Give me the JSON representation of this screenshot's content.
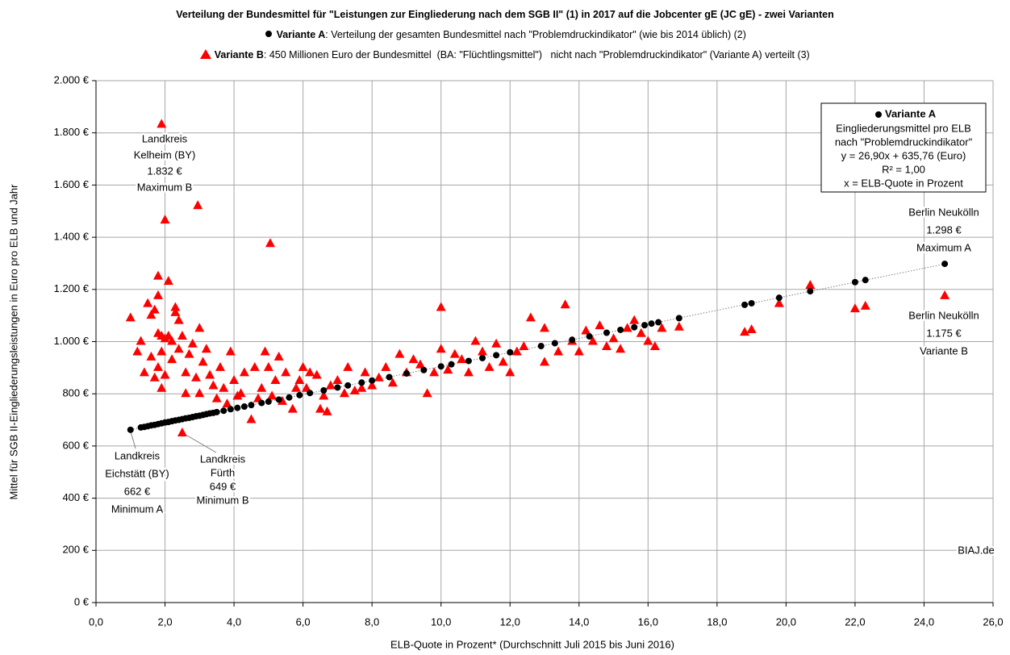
{
  "chart_data": {
    "type": "scatter",
    "title": "Verteilung der Bundesmittel für \"Leistungen zur Eingliederung nach dem SGB II\" (1) in 2017 auf die Jobcenter gE (JC gE) - zwei Varianten",
    "xlabel": "ELB-Quote in Prozent* (Durchschnitt Juli 2015 bis Juni 2016)",
    "ylabel": "Mittel für SGB II-Eingliederungsleistungen in Euro pro ELB und Jahr",
    "xlim": [
      0,
      26
    ],
    "ylim": [
      0,
      2000
    ],
    "xticks": [
      {
        "value": 0,
        "label": "0,0"
      },
      {
        "value": 2,
        "label": "2,0"
      },
      {
        "value": 4,
        "label": "4,0"
      },
      {
        "value": 6,
        "label": "6,0"
      },
      {
        "value": 8,
        "label": "8,0"
      },
      {
        "value": 10,
        "label": "10,0"
      },
      {
        "value": 12,
        "label": "12,0"
      },
      {
        "value": 14,
        "label": "14,0"
      },
      {
        "value": 16,
        "label": "16,0"
      },
      {
        "value": 18,
        "label": "18,0"
      },
      {
        "value": 20,
        "label": "20,0"
      },
      {
        "value": 22,
        "label": "22,0"
      },
      {
        "value": 24,
        "label": "24,0"
      },
      {
        "value": 26,
        "label": "26,0"
      }
    ],
    "yticks": [
      {
        "value": 0,
        "label": "0 €"
      },
      {
        "value": 200,
        "label": "200 €"
      },
      {
        "value": 400,
        "label": "400 €"
      },
      {
        "value": 600,
        "label": "600 €"
      },
      {
        "value": 800,
        "label": "800 €"
      },
      {
        "value": 1000,
        "label": "1.000 €"
      },
      {
        "value": 1200,
        "label": "1.200 €"
      },
      {
        "value": 1400,
        "label": "1.400 €"
      },
      {
        "value": 1600,
        "label": "1.600 €"
      },
      {
        "value": 1800,
        "label": "1.800 €"
      },
      {
        "value": 2000,
        "label": "2.000 €"
      }
    ],
    "grid": true,
    "series": [
      {
        "name": "Variante A",
        "description": ": Verteilung der gesamten Bundesmittel nach \"Problemdruckindikator\" (wie bis 2014 üblich) (2)",
        "color": "#000000",
        "marker": "circle",
        "x": [
          1.0,
          1.3,
          1.4,
          1.5,
          1.6,
          1.7,
          1.8,
          1.9,
          2.0,
          2.1,
          2.2,
          2.3,
          2.4,
          2.5,
          2.6,
          2.7,
          2.8,
          2.9,
          3.0,
          3.1,
          3.2,
          3.3,
          3.4,
          3.5,
          3.7,
          3.9,
          4.1,
          4.3,
          4.5,
          4.8,
          5.0,
          5.3,
          5.6,
          5.9,
          6.2,
          6.6,
          7.0,
          7.3,
          7.7,
          8.0,
          8.5,
          9.0,
          9.5,
          10.0,
          10.3,
          10.8,
          11.2,
          11.6,
          12.0,
          12.9,
          13.3,
          13.8,
          14.3,
          14.8,
          15.2,
          15.6,
          15.9,
          16.1,
          16.3,
          16.9,
          18.8,
          19.0,
          19.8,
          20.7,
          22.0,
          22.3,
          24.6
        ],
        "values": [
          662,
          671,
          673,
          676,
          679,
          681,
          684,
          687,
          690,
          692,
          695,
          698,
          700,
          703,
          706,
          708,
          711,
          714,
          716,
          719,
          722,
          725,
          727,
          730,
          735,
          741,
          746,
          751,
          757,
          765,
          770,
          778,
          786,
          795,
          803,
          813,
          824,
          832,
          843,
          851,
          864,
          878,
          891,
          905,
          913,
          926,
          937,
          948,
          959,
          983,
          994,
          1007,
          1020,
          1034,
          1045,
          1055,
          1063,
          1069,
          1074,
          1090,
          1141,
          1147,
          1168,
          1193,
          1228,
          1236,
          1298
        ]
      },
      {
        "name": "Variante B",
        "description": ": 450 Millionen Euro der Bundesmittel  (BA: \"Flüchtlingsmittel\")   nicht nach \"Problemdruckindikator\" (Variante A) verteilt (3)",
        "color": "#ff0000",
        "marker": "triangle",
        "x": [
          1.0,
          1.2,
          1.3,
          1.4,
          1.5,
          1.6,
          1.6,
          1.7,
          1.7,
          1.8,
          1.8,
          1.8,
          1.8,
          1.9,
          1.9,
          1.9,
          1.9,
          2.0,
          2.0,
          2.0,
          2.1,
          2.1,
          2.2,
          2.2,
          2.3,
          2.3,
          2.4,
          2.4,
          2.5,
          2.5,
          2.6,
          2.6,
          2.7,
          2.8,
          2.9,
          2.95,
          3.0,
          3.0,
          3.1,
          3.2,
          3.3,
          3.4,
          3.5,
          3.6,
          3.7,
          3.8,
          3.9,
          4.0,
          4.1,
          4.2,
          4.3,
          4.5,
          4.6,
          4.7,
          4.8,
          4.9,
          5.0,
          5.05,
          5.1,
          5.2,
          5.3,
          5.4,
          5.5,
          5.7,
          5.8,
          5.9,
          6.0,
          6.1,
          6.2,
          6.4,
          6.5,
          6.6,
          6.7,
          6.8,
          7.0,
          7.2,
          7.3,
          7.5,
          7.7,
          7.8,
          8.0,
          8.2,
          8.4,
          8.6,
          8.8,
          9.0,
          9.2,
          9.4,
          9.6,
          9.8,
          10.0,
          10.0,
          10.2,
          10.4,
          10.6,
          10.8,
          11.0,
          11.2,
          11.4,
          11.6,
          11.8,
          12.0,
          12.2,
          12.4,
          12.6,
          13.0,
          13.0,
          13.4,
          13.6,
          13.8,
          14.0,
          14.2,
          14.4,
          14.6,
          14.8,
          15.0,
          15.2,
          15.4,
          15.6,
          15.8,
          16.0,
          16.2,
          16.4,
          16.9,
          18.8,
          19.0,
          19.8,
          20.7,
          22.0,
          22.3,
          24.6
        ],
        "values": [
          1090,
          960,
          1000,
          880,
          1145,
          1100,
          940,
          1120,
          860,
          1250,
          1030,
          900,
          1175,
          1832,
          1020,
          820,
          960,
          1465,
          1010,
          870,
          1230,
          1020,
          930,
          1000,
          1130,
          1110,
          1080,
          970,
          649,
          1020,
          880,
          800,
          950,
          990,
          860,
          1520,
          1050,
          800,
          920,
          970,
          870,
          830,
          780,
          900,
          820,
          760,
          960,
          850,
          790,
          800,
          880,
          700,
          900,
          780,
          820,
          960,
          900,
          1375,
          790,
          850,
          940,
          770,
          880,
          740,
          820,
          850,
          900,
          820,
          880,
          870,
          740,
          790,
          730,
          830,
          850,
          800,
          900,
          810,
          820,
          880,
          830,
          860,
          900,
          840,
          950,
          880,
          930,
          910,
          800,
          880,
          1130,
          970,
          890,
          950,
          930,
          880,
          1000,
          960,
          900,
          990,
          920,
          880,
          960,
          980,
          1090,
          1050,
          920,
          960,
          1140,
          1000,
          960,
          1040,
          1000,
          1060,
          980,
          1010,
          970,
          1050,
          1080,
          1030,
          1000,
          980,
          1050,
          1055,
          1035,
          1045,
          1145,
          1215,
          1125,
          1135,
          1175
        ]
      }
    ],
    "trendline": {
      "slope": 26.9,
      "intercept": 635.76
    },
    "trendline_box": [
      "Eingliederungsmittel  pro ELB",
      "nach \"Problemdruckindikator\"",
      "y = 26,90x  + 635,76 (Euro)",
      "R² = 1,00",
      "x = ELB-Quote  in Prozent"
    ],
    "annotations": [
      [
        "Landkreis",
        "Kelheim (BY)",
        "1.832 €",
        "Maximum  B"
      ],
      [
        "Berlin Neukölln",
        "1.298 €",
        "Maximum A"
      ],
      [
        "Berlin Neukölln",
        "1.175 €",
        "Variante B"
      ],
      [
        "Landkreis",
        "Eichstätt (BY)",
        "662 €",
        "Minimum A"
      ],
      [
        "Landkreis",
        "Fürth",
        "649 €",
        "Minimum  B"
      ],
      [
        "BIAJ.de"
      ]
    ]
  }
}
